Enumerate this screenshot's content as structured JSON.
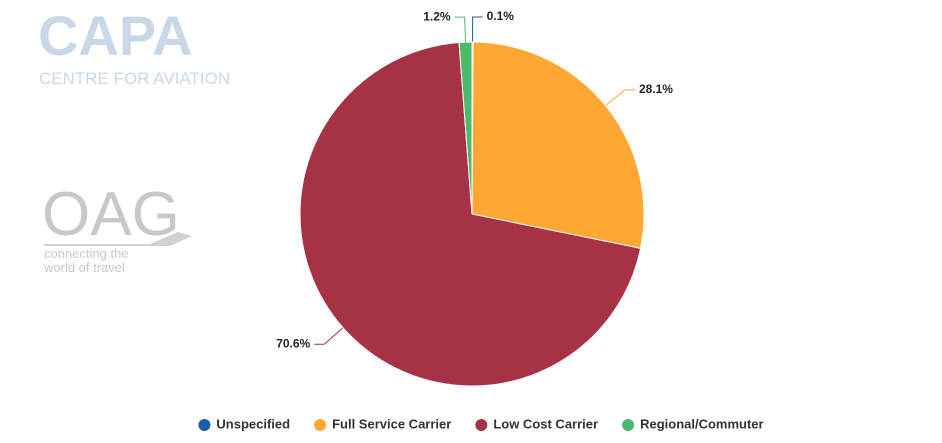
{
  "chart_data": {
    "type": "pie",
    "categories": [
      "Unspecified",
      "Full Service Carrier",
      "Low Cost Carrier",
      "Regional/Commuter"
    ],
    "values": [
      0.1,
      28.1,
      70.6,
      1.2
    ],
    "value_labels": [
      "0.1%",
      "28.1%",
      "70.6%",
      "1.2%"
    ],
    "colors": [
      "#1b5ea8",
      "#ffa733",
      "#a73246",
      "#4cb96b"
    ],
    "legend": "bottom",
    "logos": [
      "CAPA",
      "CENTRE FOR AVIATION",
      "OAG",
      "connecting the",
      "world of travel"
    ]
  }
}
